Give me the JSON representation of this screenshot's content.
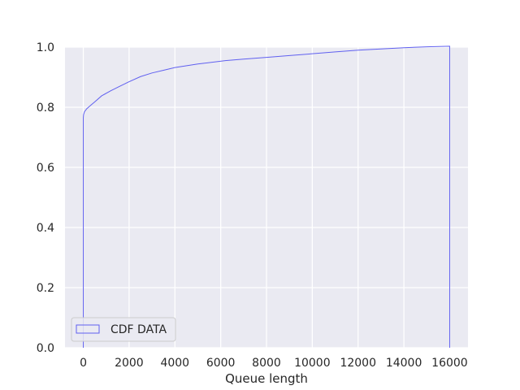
{
  "chart_data": {
    "type": "line",
    "title": "",
    "xlabel": "Queue length",
    "ylabel": "",
    "xlim": [
      -800,
      16800
    ],
    "ylim": [
      0.0,
      1.0
    ],
    "x_ticks": [
      0,
      2000,
      4000,
      6000,
      8000,
      10000,
      12000,
      14000,
      16000
    ],
    "y_ticks": [
      0.0,
      0.2,
      0.4,
      0.6,
      0.8,
      1.0
    ],
    "x_tick_labels": [
      "0",
      "2000",
      "4000",
      "6000",
      "8000",
      "10000",
      "12000",
      "14000",
      "16000"
    ],
    "y_tick_labels": [
      "0.0",
      "0.2",
      "0.4",
      "0.6",
      "0.8",
      "1.0"
    ],
    "grid": true,
    "legend": {
      "position": "lower-left",
      "entries": [
        "CDF DATA"
      ]
    },
    "series": [
      {
        "name": "CDF DATA",
        "color": "#6060f0",
        "x": [
          0,
          0,
          10,
          50,
          150,
          300,
          500,
          800,
          1200,
          1600,
          2000,
          2500,
          3000,
          3500,
          4000,
          5000,
          6200,
          7000,
          8000,
          9000,
          10000,
          11000,
          12000,
          13000,
          14000,
          15000,
          16000,
          16000
        ],
        "y": [
          0.0,
          0.765,
          0.775,
          0.785,
          0.795,
          0.805,
          0.818,
          0.838,
          0.855,
          0.87,
          0.885,
          0.902,
          0.914,
          0.923,
          0.932,
          0.944,
          0.955,
          0.96,
          0.966,
          0.972,
          0.978,
          0.984,
          0.99,
          0.994,
          0.998,
          1.001,
          1.003,
          0.0
        ]
      }
    ]
  },
  "colors": {
    "plot_background": "#eaeaf2",
    "grid": "#ffffff",
    "text": "#262626"
  }
}
